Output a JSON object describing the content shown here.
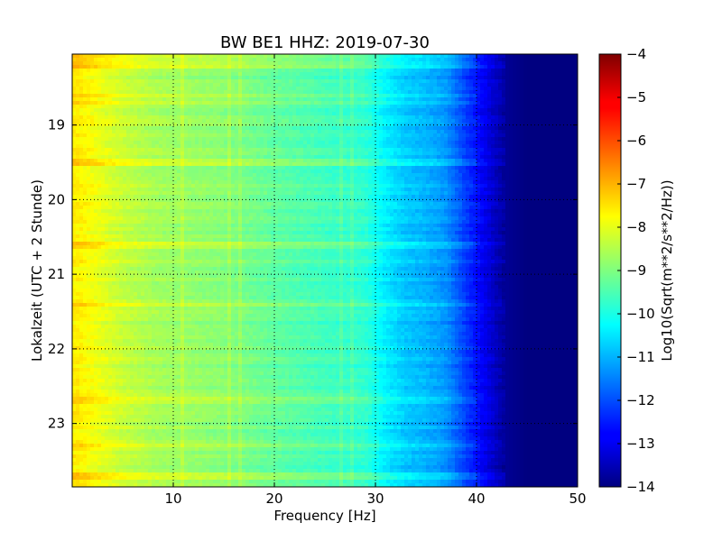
{
  "chart_data": {
    "type": "heatmap",
    "title": "BW BE1 HHZ: 2019-07-30",
    "xlabel": "Frequency [Hz]",
    "ylabel": "Lokalzeit (UTC + 2 Stunde)",
    "xlim": [
      0,
      50
    ],
    "ylim": [
      18.05,
      23.85
    ],
    "y_inverted": true,
    "x_ticks": [
      10,
      20,
      30,
      40,
      50
    ],
    "x_tick_labels": [
      "10",
      "20",
      "30",
      "40",
      "50"
    ],
    "y_ticks": [
      19,
      20,
      21,
      22,
      23
    ],
    "y_tick_labels": [
      "19",
      "20",
      "21",
      "22",
      "23"
    ],
    "grid": true,
    "colormap": "jet",
    "colorbar": {
      "label": "Log10(Sqrt(m**2/s**2/Hz))",
      "range": [
        -14,
        -4
      ],
      "ticks": [
        -4,
        -5,
        -6,
        -7,
        -8,
        -9,
        -10,
        -11,
        -12,
        -13,
        -14
      ],
      "tick_labels": [
        "−4",
        "−5",
        "−6",
        "−7",
        "−8",
        "−9",
        "−10",
        "−11",
        "−12",
        "−13",
        "−14"
      ]
    },
    "spectrum_profile": {
      "frequency_hz": [
        0.5,
        3,
        5,
        8,
        10,
        15,
        20,
        25,
        29,
        31,
        33,
        35,
        37,
        39,
        41,
        43,
        45,
        50
      ],
      "log10_value": [
        -7.6,
        -8.0,
        -8.3,
        -8.6,
        -8.7,
        -8.9,
        -9.3,
        -9.6,
        -9.8,
        -10.4,
        -10.8,
        -11.0,
        -11.3,
        -12.2,
        -13.0,
        -13.8,
        -14.0,
        -14.0
      ]
    },
    "bright_bands_hour": [
      18.1,
      18.2,
      18.6,
      18.7,
      19.5,
      20.6,
      21.4,
      22.7,
      23.3,
      23.7
    ],
    "spectral_lines_hz": [
      11,
      15.5,
      16.5,
      26.5,
      27.6
    ]
  }
}
